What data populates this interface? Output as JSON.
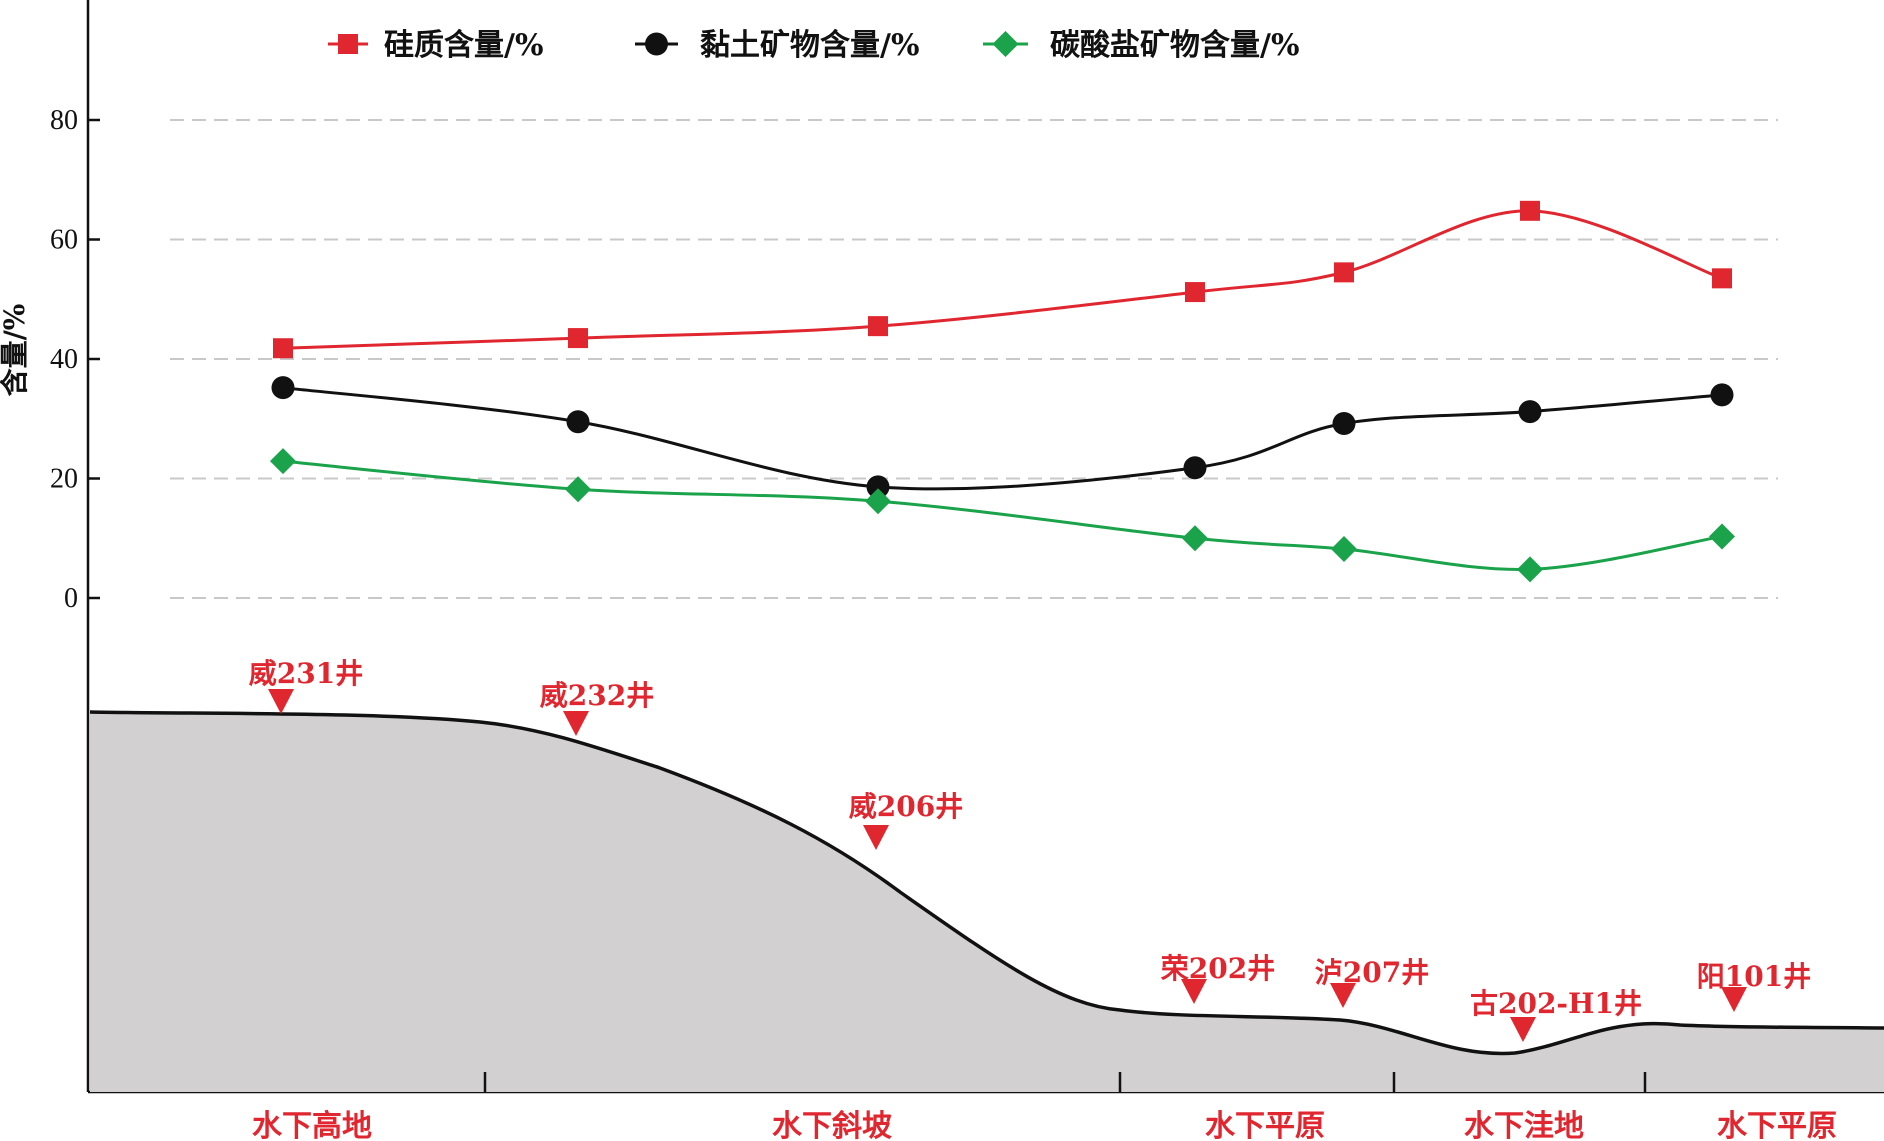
{
  "chart_data": {
    "type": "line",
    "title": "",
    "xlabel": "",
    "ylabel": "含量/%",
    "ylim": [
      0,
      80
    ],
    "yticks": [
      0,
      20,
      40,
      60,
      80
    ],
    "grid": true,
    "legend_position": "top",
    "categories": [
      "威231井",
      "威232井",
      "威206井",
      "荣202井",
      "泸207井",
      "古202-H1井",
      "阳101井"
    ],
    "series": [
      {
        "name": "硅质含量/%",
        "color": "#e0262f",
        "marker": "square",
        "values": [
          41.8,
          43.5,
          45.5,
          51.2,
          54.5,
          64.8,
          53.5
        ]
      },
      {
        "name": "黏土矿物含量/%",
        "color": "#111111",
        "marker": "circle",
        "values": [
          35.2,
          29.5,
          18.6,
          21.8,
          29.2,
          31.2,
          34.0
        ]
      },
      {
        "name": "碳酸盐矿物含量/%",
        "color": "#1aa34a",
        "marker": "diamond",
        "values": [
          22.9,
          18.2,
          16.2,
          10.0,
          8.2,
          4.8,
          10.3
        ]
      }
    ],
    "zones": [
      "水下高地",
      "水下斜坡",
      "水下平原",
      "水下洼地",
      "水下平原"
    ],
    "colors": {
      "accent": "#e0262f",
      "terrain_fill": "#d2d0d0",
      "grid": "#c8c8c8"
    }
  }
}
